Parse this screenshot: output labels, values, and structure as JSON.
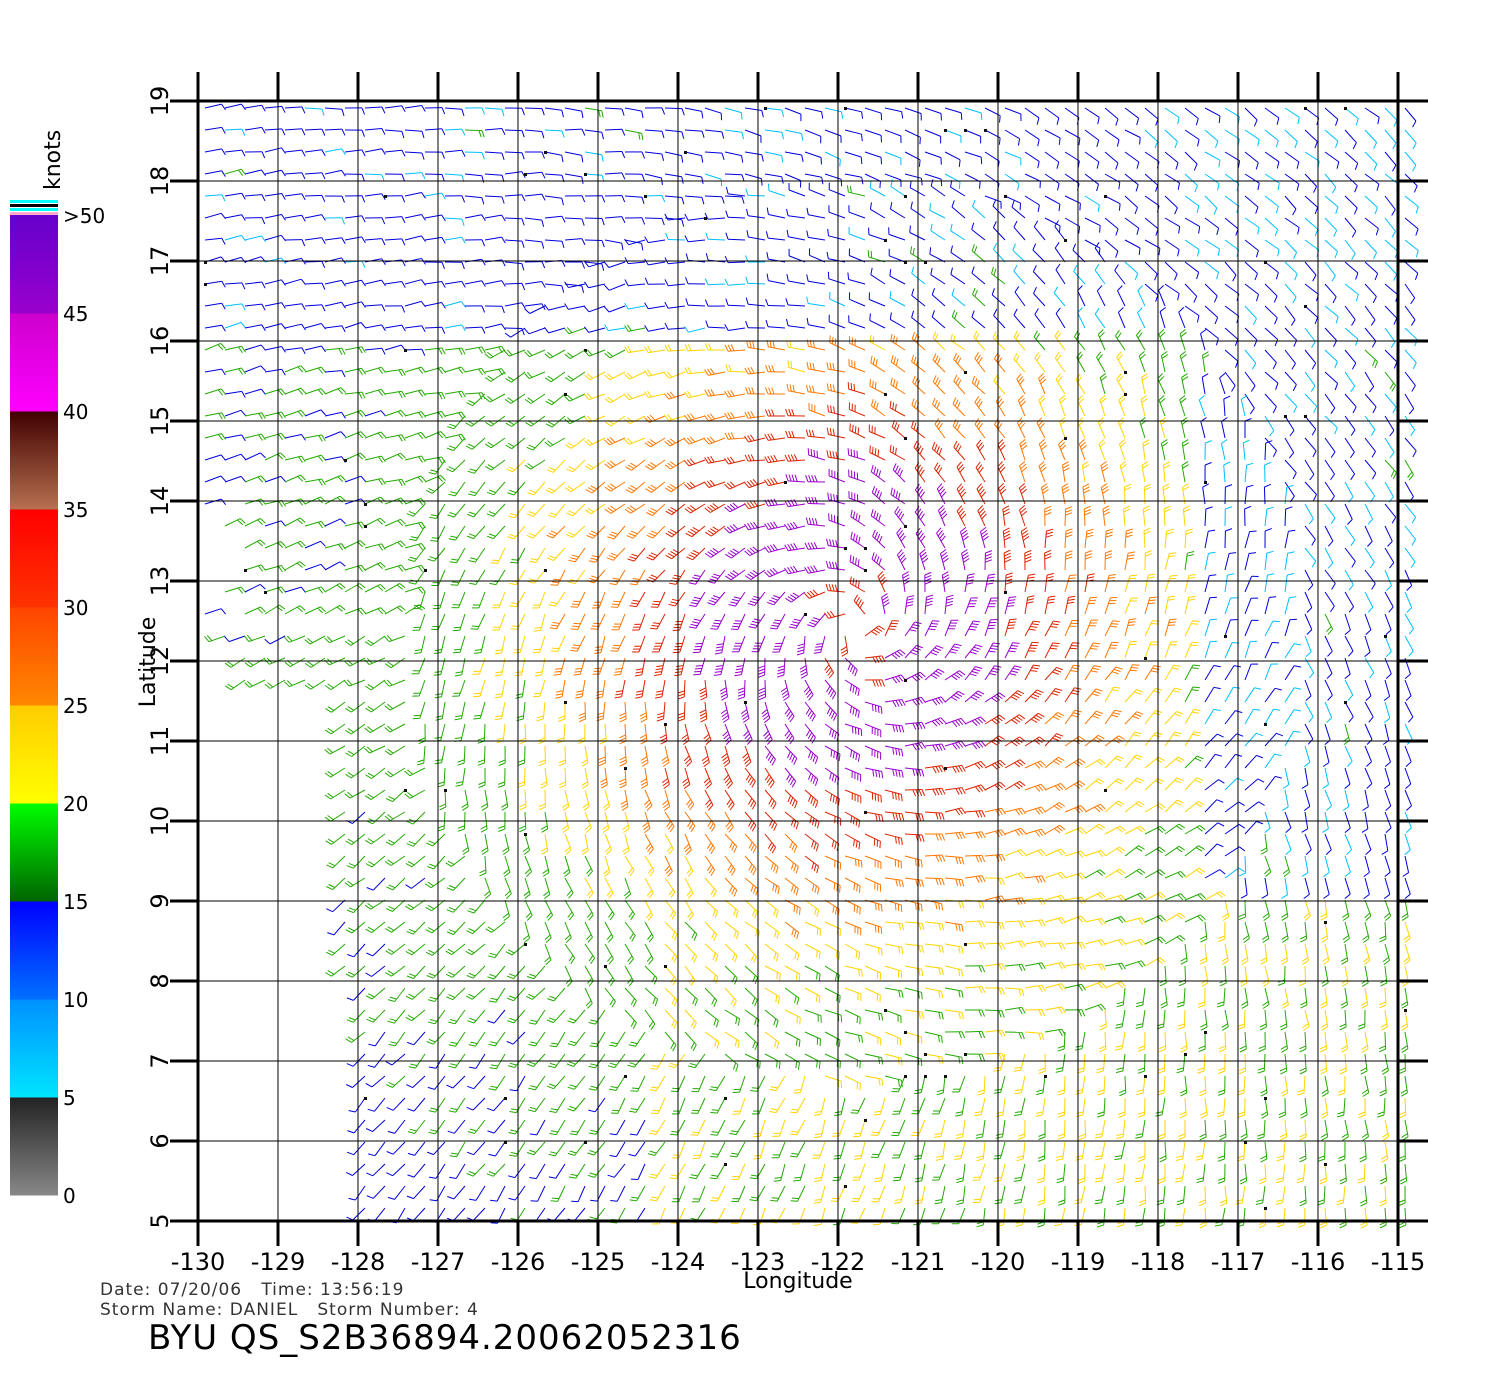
{
  "map": {
    "lon_range": [
      -130,
      -115
    ],
    "lat_range": [
      5,
      19
    ],
    "lon_ticks": [
      "-130",
      "-129",
      "-128",
      "-127",
      "-126",
      "-125",
      "-124",
      "-123",
      "-122",
      "-121",
      "-120",
      "-119",
      "-118",
      "-117",
      "-116",
      "-115"
    ],
    "lat_ticks": [
      "5",
      "6",
      "7",
      "8",
      "9",
      "10",
      "11",
      "12",
      "13",
      "14",
      "15",
      "16",
      "17",
      "18",
      "19"
    ],
    "xlabel": "Longitude",
    "ylabel": "Latitude",
    "storm_center": {
      "lon": -121.8,
      "lat": 12.4
    },
    "grid": true
  },
  "colorbar": {
    "unit": "knots",
    "labels": [
      "0",
      "5",
      "10",
      "15",
      "20",
      "25",
      "30",
      "35",
      "40",
      "45",
      ">50"
    ],
    "segments": [
      {
        "from": 0,
        "to": 5,
        "colors": [
          "#888888",
          "#222222"
        ]
      },
      {
        "from": 5,
        "to": 10,
        "colors": [
          "#00e5ff",
          "#0090ff"
        ]
      },
      {
        "from": 10,
        "to": 15,
        "colors": [
          "#0070ff",
          "#0000ff"
        ]
      },
      {
        "from": 15,
        "to": 20,
        "colors": [
          "#006400",
          "#00ff00"
        ]
      },
      {
        "from": 20,
        "to": 25,
        "colors": [
          "#ffff00",
          "#ffcc00"
        ]
      },
      {
        "from": 25,
        "to": 30,
        "colors": [
          "#ff8800",
          "#ff4400"
        ]
      },
      {
        "from": 30,
        "to": 35,
        "colors": [
          "#ff3300",
          "#ff0000"
        ]
      },
      {
        "from": 35,
        "to": 40,
        "colors": [
          "#b87050",
          "#400000"
        ]
      },
      {
        "from": 40,
        "to": 45,
        "colors": [
          "#ff00ff",
          "#cc00cc"
        ]
      },
      {
        "from": 45,
        "to": 50,
        "colors": [
          "#9900cc",
          "#6600cc"
        ]
      }
    ],
    "wind_colors": {
      "calm": "#444444",
      "light_cyan": "#00bfff",
      "blue": "#0000dd",
      "green": "#22aa00",
      "yellow": "#ffd400",
      "orange": "#ff7700",
      "red": "#dd2200",
      "purple": "#9900cc"
    }
  },
  "info": {
    "line1": "Date: 07/20/06   Time: 13:56:19",
    "line2": "Storm Name: DANIEL   Storm Number: 4"
  },
  "file_title": "BYU  QS_S2B36894.20062052316"
}
